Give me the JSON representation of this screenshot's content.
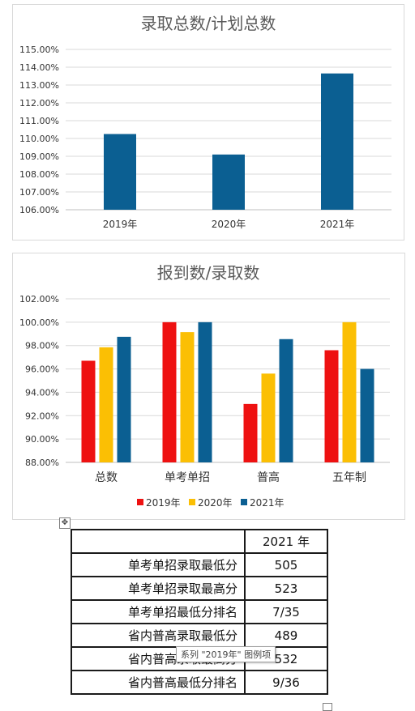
{
  "chart_data": [
    {
      "type": "bar",
      "title": "录取总数/计划总数",
      "categories": [
        "2019年",
        "2020年",
        "2021年"
      ],
      "values": [
        110.25,
        109.1,
        113.65
      ],
      "ylim": [
        106,
        115
      ],
      "yticks": [
        "106.00%",
        "107.00%",
        "108.00%",
        "109.00%",
        "110.00%",
        "111.00%",
        "112.00%",
        "113.00%",
        "114.00%",
        "115.00%"
      ],
      "color": "#0b5f92",
      "grid": true
    },
    {
      "type": "bar",
      "title": "报到数/录取数",
      "categories": [
        "总数",
        "单考单招",
        "普高",
        "五年制"
      ],
      "series": [
        {
          "name": "2019年",
          "color": "#ee1111",
          "values": [
            96.7,
            100.0,
            93.0,
            97.6
          ]
        },
        {
          "name": "2020年",
          "color": "#fbbf04",
          "values": [
            97.85,
            99.15,
            95.6,
            100.0
          ]
        },
        {
          "name": "2021年",
          "color": "#0b5f92",
          "values": [
            98.75,
            100.0,
            98.55,
            96.0
          ]
        }
      ],
      "ylim": [
        88,
        102
      ],
      "yticks": [
        "88.00%",
        "90.00%",
        "92.00%",
        "94.00%",
        "96.00%",
        "98.00%",
        "100.00%",
        "102.00%"
      ],
      "legend": "bottom",
      "grid": true
    }
  ],
  "table": {
    "header": [
      "",
      "2021 年"
    ],
    "rows": [
      {
        "label": "单考单招录取最低分",
        "value": "505"
      },
      {
        "label": "单考单招录取最高分",
        "value": "523"
      },
      {
        "label": "单考单招最低分排名",
        "value": "7/35"
      },
      {
        "label": "省内普高录取最低分",
        "value": "489"
      },
      {
        "label": "省内普高录取最高分",
        "value": "532"
      },
      {
        "label": "省内普高最低分排名",
        "value": "9/36"
      }
    ]
  },
  "tooltip": "系列 \"2019年\" 图例项",
  "table_anchor_icon": "move-arrows-icon"
}
